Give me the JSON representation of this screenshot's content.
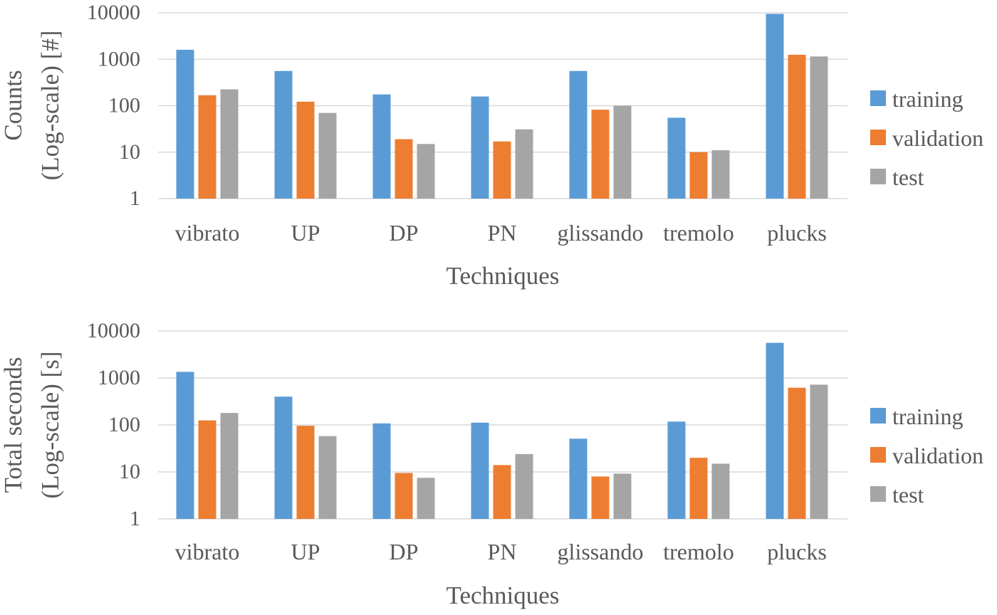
{
  "chart_data": [
    {
      "type": "bar",
      "log_scale": true,
      "ylim": [
        1,
        10000
      ],
      "yticks": [
        "1",
        "10",
        "100",
        "1000",
        "10000"
      ],
      "ylabel_lines": [
        "Counts",
        "(Log-scale) [#]"
      ],
      "xlabel": "Techniques",
      "legend_position": "right",
      "grid": true,
      "categories": [
        "vibrato",
        "UP",
        "DP",
        "PN",
        "glissando",
        "tremolo",
        "plucks"
      ],
      "series": [
        {
          "name": "training",
          "color": "#5B9BD5",
          "values": [
            1600,
            560,
            175,
            158,
            560,
            55,
            9500
          ]
        },
        {
          "name": "validation",
          "color": "#ED7D31",
          "values": [
            168,
            122,
            19,
            17,
            82,
            10,
            1250
          ]
        },
        {
          "name": "test",
          "color": "#A5A5A5",
          "values": [
            225,
            70,
            15,
            31,
            100,
            11,
            1150
          ]
        }
      ]
    },
    {
      "type": "bar",
      "log_scale": true,
      "ylim": [
        1,
        10000
      ],
      "yticks": [
        "1",
        "10",
        "100",
        "1000",
        "10000"
      ],
      "ylabel_lines": [
        "Total seconds",
        "(Log-scale) [s]"
      ],
      "xlabel": "Techniques",
      "legend_position": "right",
      "grid": true,
      "categories": [
        "vibrato",
        "UP",
        "DP",
        "PN",
        "glissando",
        "tremolo",
        "plucks"
      ],
      "series": [
        {
          "name": "training",
          "color": "#5B9BD5",
          "values": [
            1350,
            400,
            108,
            112,
            51,
            118,
            5600
          ]
        },
        {
          "name": "validation",
          "color": "#ED7D31",
          "values": [
            125,
            96,
            9.5,
            14,
            8,
            20,
            620
          ]
        },
        {
          "name": "test",
          "color": "#A5A5A5",
          "values": [
            180,
            58,
            7.5,
            24,
            9.2,
            15,
            720
          ]
        }
      ]
    }
  ]
}
